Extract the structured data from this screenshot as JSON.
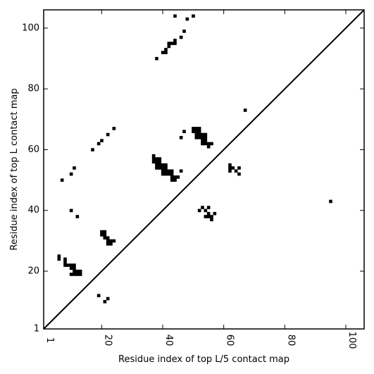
{
  "chart_data": {
    "type": "heatmap",
    "title": "",
    "xlabel": "Residue index of top L/5 contact map",
    "ylabel": "Residue index of top L contact map",
    "xlim": [
      1,
      106
    ],
    "ylim": [
      1,
      106
    ],
    "xticks": [
      1,
      20,
      40,
      60,
      80,
      100
    ],
    "yticks": [
      1,
      20,
      40,
      60,
      80,
      100
    ],
    "grid": false,
    "diagonal": true,
    "cell_color": "#000000",
    "upper_points": [
      [
        7,
        50
      ],
      [
        10,
        52
      ],
      [
        11,
        54
      ],
      [
        17,
        60
      ],
      [
        19,
        62
      ],
      [
        20,
        63
      ],
      [
        22,
        65
      ],
      [
        24,
        67
      ],
      [
        38,
        90
      ],
      [
        40,
        92
      ],
      [
        41,
        92
      ],
      [
        41,
        93
      ],
      [
        42,
        94
      ],
      [
        42,
        95
      ],
      [
        43,
        95
      ],
      [
        44,
        95
      ],
      [
        44,
        96
      ],
      [
        46,
        97
      ],
      [
        47,
        99
      ],
      [
        48,
        103
      ],
      [
        50,
        104
      ],
      [
        44,
        104
      ],
      [
        67,
        73
      ],
      [
        46,
        64
      ],
      [
        47,
        66
      ],
      [
        50,
        66
      ],
      [
        50,
        67
      ],
      [
        51,
        66
      ],
      [
        51,
        67
      ],
      [
        52,
        66
      ],
      [
        52,
        67
      ],
      [
        51,
        65
      ],
      [
        51,
        64
      ],
      [
        52,
        64
      ],
      [
        52,
        65
      ],
      [
        53,
        65
      ],
      [
        54,
        65
      ],
      [
        53,
        64
      ],
      [
        54,
        64
      ],
      [
        53,
        63
      ],
      [
        54,
        63
      ],
      [
        53,
        62
      ],
      [
        54,
        62
      ],
      [
        55,
        62
      ],
      [
        56,
        62
      ],
      [
        55,
        61
      ],
      [
        37,
        58
      ],
      [
        37,
        57
      ],
      [
        38,
        57
      ],
      [
        39,
        57
      ],
      [
        37,
        56
      ],
      [
        38,
        56
      ],
      [
        39,
        56
      ],
      [
        38,
        55
      ],
      [
        39,
        55
      ],
      [
        40,
        55
      ],
      [
        41,
        55
      ],
      [
        38,
        54
      ],
      [
        39,
        54
      ],
      [
        40,
        54
      ],
      [
        41,
        54
      ],
      [
        40,
        53
      ],
      [
        41,
        53
      ],
      [
        42,
        53
      ],
      [
        43,
        53
      ],
      [
        40,
        52
      ],
      [
        41,
        52
      ],
      [
        42,
        52
      ],
      [
        43,
        52
      ],
      [
        43,
        51
      ],
      [
        44,
        51
      ],
      [
        45,
        51
      ],
      [
        43,
        50
      ],
      [
        44,
        50
      ],
      [
        46,
        53
      ],
      [
        62,
        55
      ],
      [
        62,
        54
      ],
      [
        63,
        54
      ],
      [
        62,
        53
      ],
      [
        64,
        53
      ],
      [
        65,
        52
      ],
      [
        65,
        54
      ]
    ],
    "lower_points": [
      [
        95,
        43
      ],
      [
        10,
        40
      ],
      [
        12,
        38
      ],
      [
        20,
        33
      ],
      [
        21,
        33
      ],
      [
        20,
        32
      ],
      [
        21,
        32
      ],
      [
        21,
        31
      ],
      [
        22,
        31
      ],
      [
        22,
        30
      ],
      [
        22,
        29
      ],
      [
        23,
        29
      ],
      [
        23,
        30
      ],
      [
        24,
        30
      ],
      [
        6,
        25
      ],
      [
        6,
        24
      ],
      [
        8,
        24
      ],
      [
        8,
        23
      ],
      [
        8,
        22
      ],
      [
        9,
        22
      ],
      [
        10,
        22
      ],
      [
        11,
        22
      ],
      [
        10,
        21
      ],
      [
        11,
        21
      ],
      [
        10,
        19
      ],
      [
        11,
        19
      ],
      [
        12,
        19
      ],
      [
        13,
        19
      ],
      [
        11,
        20
      ],
      [
        12,
        20
      ],
      [
        13,
        20
      ],
      [
        19,
        12
      ],
      [
        22,
        11
      ],
      [
        21,
        10
      ],
      [
        52,
        40
      ],
      [
        53,
        41
      ],
      [
        54,
        40
      ],
      [
        55,
        41
      ],
      [
        55,
        39
      ],
      [
        54,
        38
      ],
      [
        55,
        38
      ],
      [
        56,
        38
      ],
      [
        56,
        37
      ],
      [
        57,
        39
      ]
    ]
  }
}
